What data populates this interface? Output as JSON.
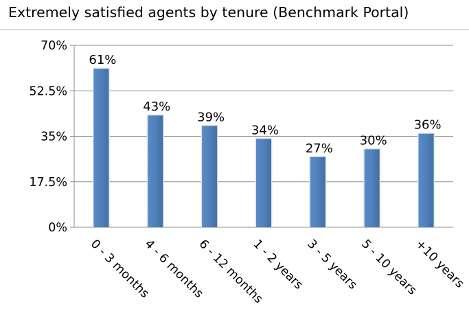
{
  "chart_data": {
    "type": "bar",
    "title": "Extremely satisfied agents by tenure (Benchmark Portal)",
    "categories": [
      "0 - 3 months",
      "4 - 6 months",
      "6 - 12 months",
      "1 - 2 years",
      "3 - 5 years",
      "5 - 10 years",
      "+10 years"
    ],
    "values": [
      61,
      43,
      39,
      34,
      27,
      30,
      36
    ],
    "data_labels": [
      "61%",
      "43%",
      "39%",
      "34%",
      "27%",
      "30%",
      "36%"
    ],
    "ylim": [
      0,
      70
    ],
    "yticks": [
      0,
      17.5,
      35,
      52.5,
      70
    ],
    "ytick_labels": [
      "0%",
      "17.5%",
      "35%",
      "52.5%",
      "70%"
    ],
    "xlabel": "",
    "ylabel": "",
    "grid": true,
    "legend": "none",
    "bar_color": "#4f81bd",
    "grid_color": "#8c8c8c"
  }
}
